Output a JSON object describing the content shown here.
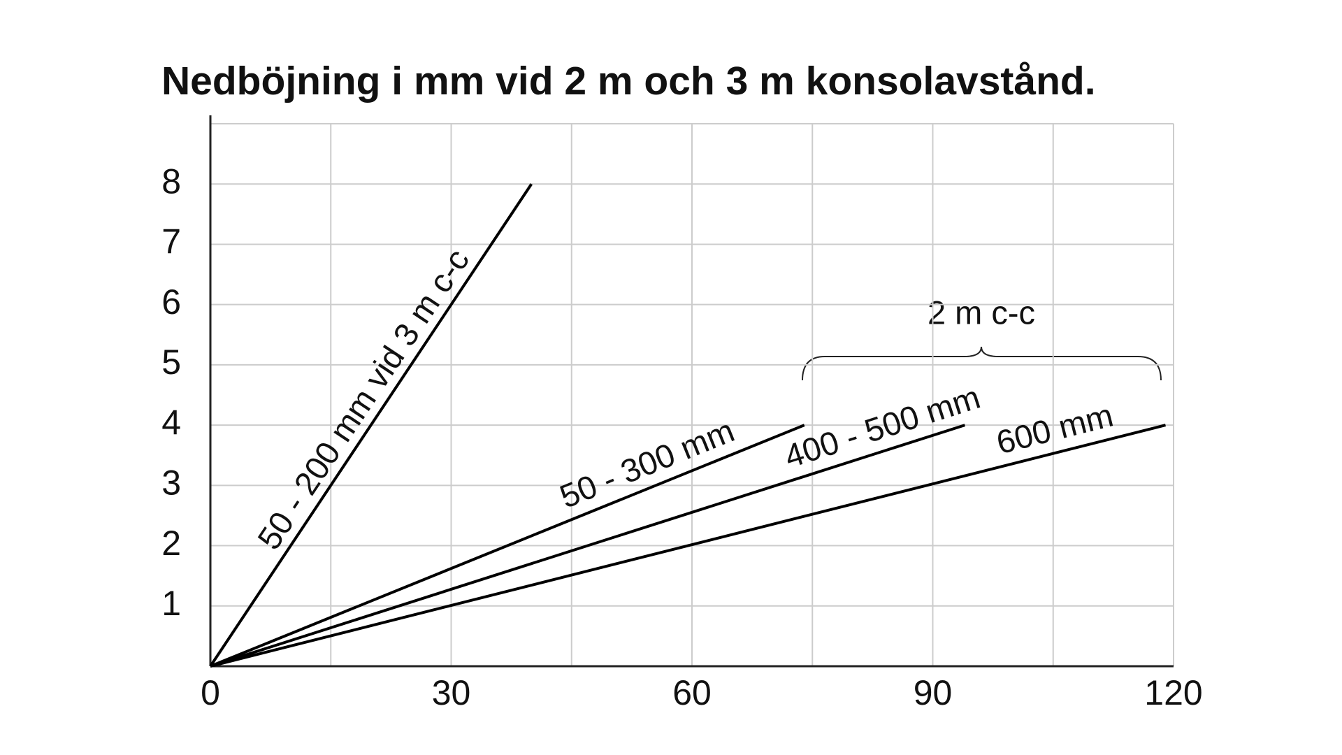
{
  "chart_data": {
    "type": "line",
    "title": "Nedböjning i mm vid 2 m och 3 m konsolavstånd.",
    "annotation": "2 m c-c",
    "xlim": [
      0,
      120
    ],
    "xticks": [
      0,
      30,
      60,
      90,
      120
    ],
    "minor_xticks": [
      15,
      45,
      75,
      105
    ],
    "ylim": [
      0,
      9
    ],
    "yticks": [
      1,
      2,
      3,
      4,
      5,
      6,
      7,
      8
    ],
    "grid": true,
    "series": [
      {
        "name": "50 - 200 mm vid 3 m c-c",
        "color": "#000000",
        "x": [
          0,
          40
        ],
        "values": [
          0,
          8
        ]
      },
      {
        "name": "50 - 300 mm",
        "color": "#000000",
        "x": [
          0,
          74
        ],
        "values": [
          0,
          4
        ]
      },
      {
        "name": "400 - 500 mm",
        "color": "#000000",
        "x": [
          0,
          94
        ],
        "values": [
          0,
          4
        ]
      },
      {
        "name": "600 mm",
        "color": "#000000",
        "x": [
          0,
          119
        ],
        "values": [
          0,
          4
        ]
      }
    ]
  }
}
